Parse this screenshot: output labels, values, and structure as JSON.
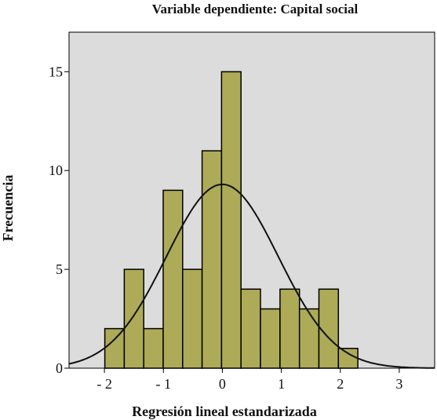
{
  "chart_data": {
    "type": "histogram",
    "title": "Variable dependiente: Capital social",
    "xlabel": "Regresión lineal estandarizada",
    "ylabel": "Frecuencia",
    "xlim": [
      -2.6,
      3.6
    ],
    "ylim": [
      0,
      17
    ],
    "x_ticks": [
      -2,
      -1,
      0,
      1,
      2,
      3
    ],
    "x_tick_labels": [
      "- 2",
      "- 1",
      "0",
      "1",
      "2",
      "3"
    ],
    "y_ticks": [
      0,
      5,
      10,
      15
    ],
    "y_tick_labels": [
      "0",
      "5",
      "10",
      "15"
    ],
    "bin_width": 0.33,
    "bins": [
      {
        "start": -1.993,
        "count": 2
      },
      {
        "start": -1.663,
        "count": 5
      },
      {
        "start": -1.333,
        "count": 2
      },
      {
        "start": -1.003,
        "count": 9
      },
      {
        "start": -0.673,
        "count": 5
      },
      {
        "start": -0.343,
        "count": 11
      },
      {
        "start": -0.013,
        "count": 15
      },
      {
        "start": 0.317,
        "count": 4
      },
      {
        "start": 0.647,
        "count": 3
      },
      {
        "start": 0.977,
        "count": 4
      },
      {
        "start": 1.307,
        "count": 3
      },
      {
        "start": 1.637,
        "count": 4
      },
      {
        "start": 1.967,
        "count": 1
      }
    ],
    "normal_curve": {
      "mean": 0.0,
      "std_dev": 0.95,
      "peak": 9.3
    },
    "grid": false,
    "colors": {
      "bar_fill": "#adab57",
      "bar_stroke": "#000000",
      "plot_bg": "#dcdcdc",
      "curve": "#111111"
    }
  }
}
